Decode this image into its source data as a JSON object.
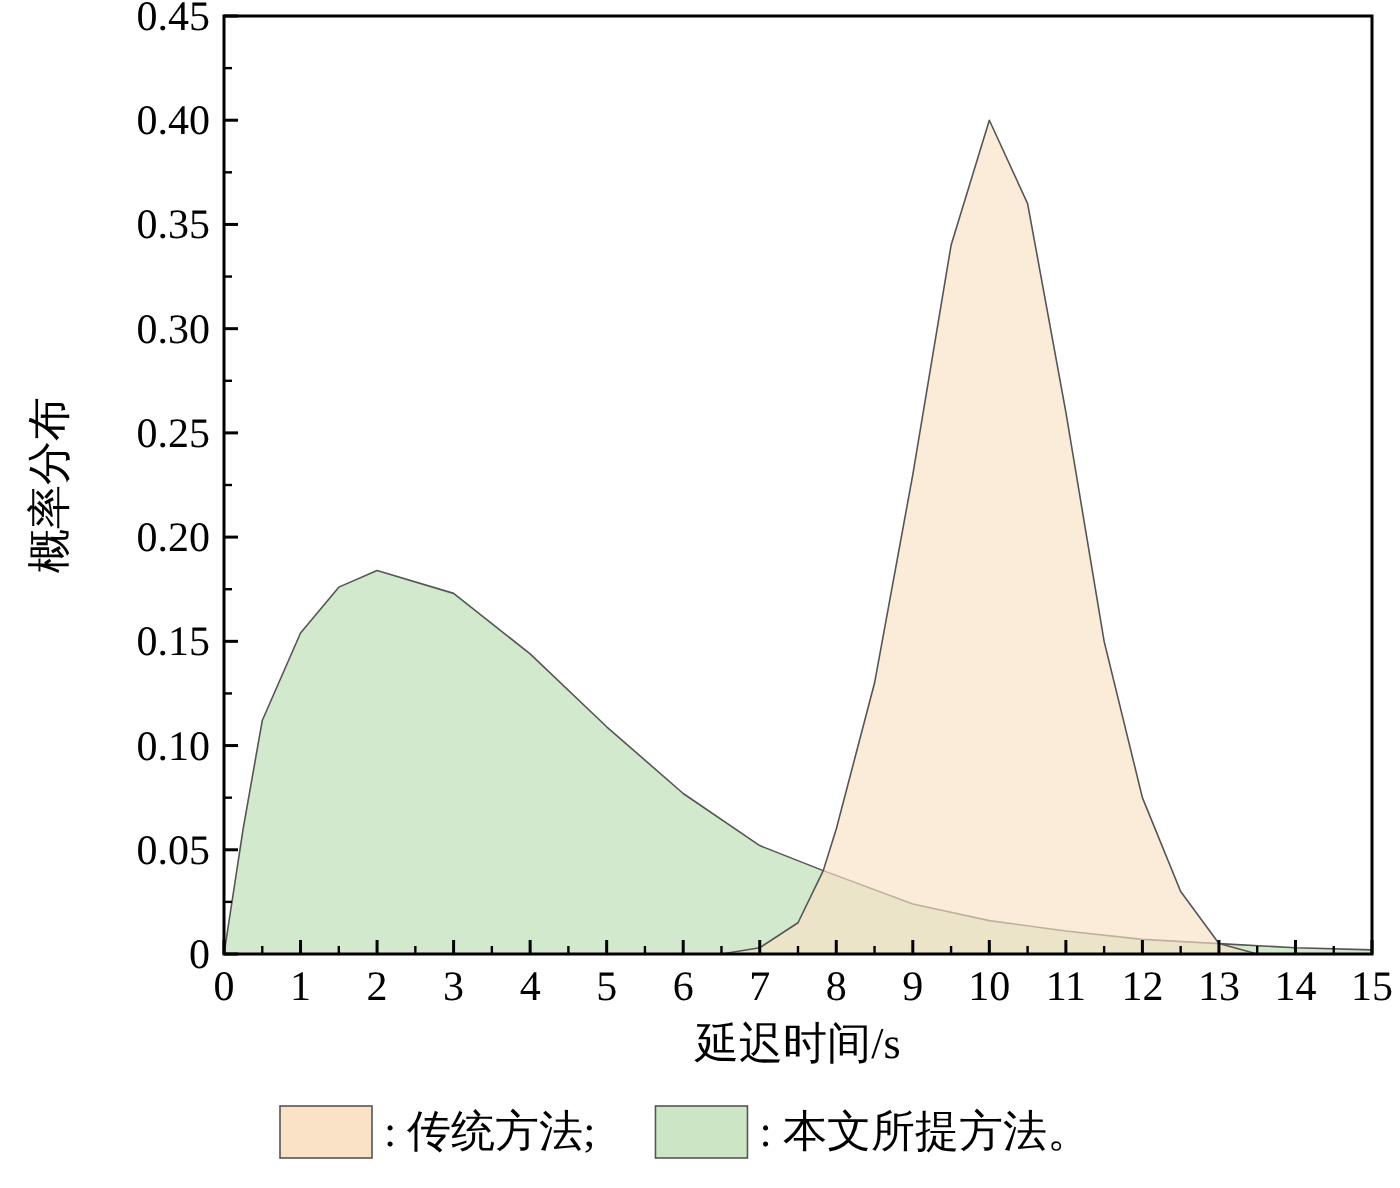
{
  "chart_data": {
    "type": "area",
    "xlabel": "延迟时间/s",
    "ylabel": "概率分布",
    "xlim": [
      0,
      15
    ],
    "ylim": [
      0,
      0.45
    ],
    "xticks": [
      0,
      1,
      2,
      3,
      4,
      5,
      6,
      7,
      8,
      9,
      10,
      11,
      12,
      13,
      14,
      15
    ],
    "yticks": [
      0,
      0.05,
      {
        "value": 0.1,
        "label": "0.10"
      },
      0.15,
      {
        "value": 0.2,
        "label": "0.20"
      },
      0.25,
      {
        "value": 0.3,
        "label": "0.30"
      },
      0.35,
      {
        "value": 0.4,
        "label": "0.40"
      },
      0.45
    ],
    "legend": "bottom",
    "grid": false,
    "series": [
      {
        "name": ": 传统方法;",
        "color": "#f9e2c5",
        "x": [
          6.5,
          7,
          7.5,
          7.83,
          8,
          8.5,
          9,
          9.5,
          10,
          10.5,
          11,
          11.5,
          12,
          12.5,
          13,
          13.5,
          15
        ],
        "values": [
          0,
          0.003,
          0.015,
          0.04,
          0.06,
          0.13,
          0.23,
          0.34,
          0.4,
          0.36,
          0.26,
          0.15,
          0.075,
          0.03,
          0.005,
          0,
          0
        ]
      },
      {
        "name": ": 本文所提方法。",
        "color": "#cbe5c5",
        "x": [
          0,
          0.25,
          0.5,
          1,
          1.5,
          2,
          3,
          4,
          5,
          6,
          7,
          7.83,
          9,
          10,
          11,
          12,
          13,
          14,
          15
        ],
        "values": [
          0,
          0.06,
          0.112,
          0.154,
          0.176,
          0.184,
          0.173,
          0.144,
          0.109,
          0.077,
          0.052,
          0.04,
          0.024,
          0.016,
          0.011,
          0.007,
          0.005,
          0.003,
          0.002
        ]
      }
    ]
  }
}
